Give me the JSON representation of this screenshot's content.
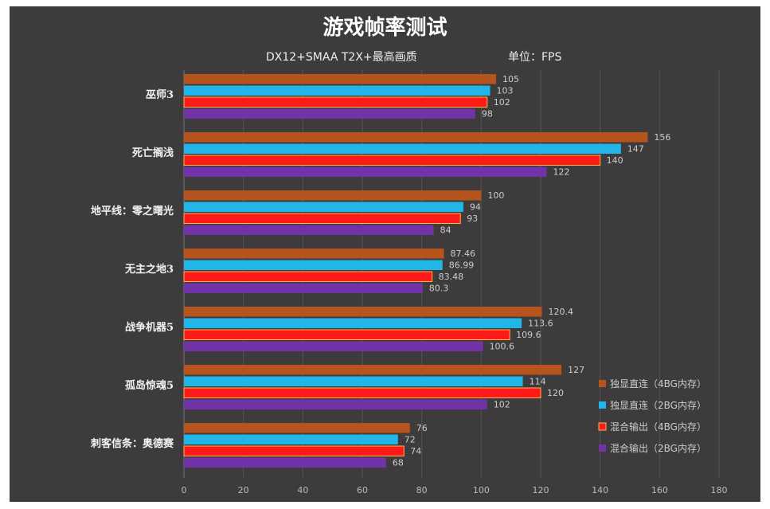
{
  "chart_data": {
    "type": "bar",
    "orientation": "horizontal",
    "title": "游戏帧率测试",
    "subtitle": "DX12+SMAA T2X+最高画质",
    "unit": "单位：FPS",
    "categories": [
      "巫师3",
      "死亡搁浅",
      "地平线：零之曙光",
      "无主之地3",
      "战争机器5",
      "孤岛惊魂5",
      "刺客信条：奥德赛"
    ],
    "series": [
      {
        "name": "独显直连（4BG内存）",
        "color": "#b5541c",
        "values": [
          105,
          156,
          100,
          87.46,
          120.4,
          127,
          76
        ]
      },
      {
        "name": "独显直连（2BG内存）",
        "color": "#22b5e8",
        "values": [
          103,
          147,
          94,
          86.99,
          113.6,
          114,
          72
        ]
      },
      {
        "name": "混合输出（4BG内存）",
        "color": "#ff1a1a",
        "values": [
          102,
          140,
          93,
          83.48,
          109.6,
          120,
          74
        ]
      },
      {
        "name": "混合输出（2BG内存）",
        "color": "#7232a8",
        "values": [
          98,
          122,
          84,
          80.3,
          100.6,
          102,
          68
        ]
      }
    ],
    "xlim": [
      0,
      180
    ],
    "xticks": [
      0,
      20,
      40,
      60,
      80,
      100,
      120,
      140,
      160,
      180
    ],
    "grid": true,
    "legend": "bottom-right"
  }
}
